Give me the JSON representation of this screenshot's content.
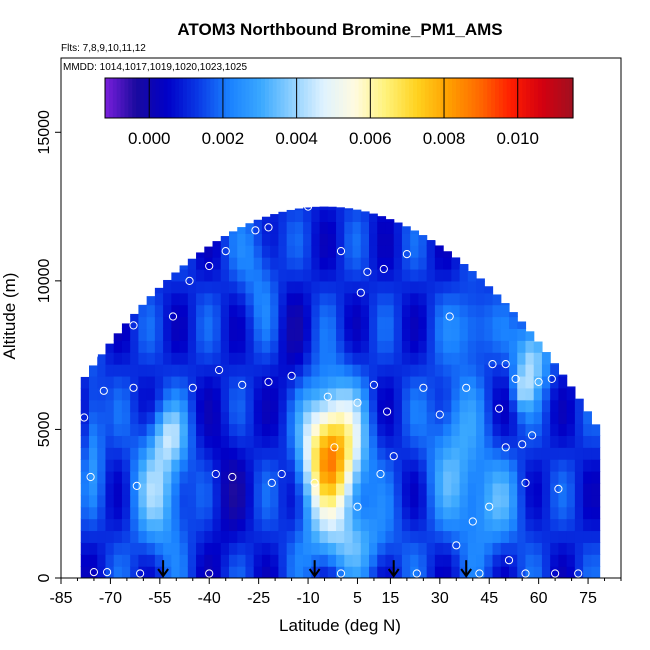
{
  "chart_data": {
    "type": "heatmap",
    "title": "ATOM3 Northbound Bromine_PM1_AMS",
    "subtitle_flights": "Flts: 7,8,9,10,11,12",
    "subtitle_dates": "MMDD: 1014,1017,1019,1020,1023,1025",
    "xlabel": "Latitude (deg N)",
    "ylabel": "Altitude (m)",
    "xlim": [
      -85,
      85
    ],
    "ylim": [
      0,
      17500
    ],
    "x_ticks": [
      -85,
      -70,
      -55,
      -40,
      -25,
      -10,
      5,
      15,
      30,
      45,
      60,
      75
    ],
    "x_tick_labels": [
      "-85",
      "-70",
      "-55",
      "-40",
      "-25",
      "-10",
      "5",
      "15",
      "30",
      "45",
      "60",
      "75"
    ],
    "y_ticks": [
      0,
      5000,
      10000,
      15000
    ],
    "y_tick_labels": [
      "0",
      "5000",
      "10000",
      "15000"
    ],
    "colorbar": {
      "range": [
        -0.0012,
        0.0115
      ],
      "ticks": [
        0.0,
        0.002,
        0.004,
        0.006,
        0.008,
        0.01
      ],
      "tick_labels": [
        "0.000",
        "0.002",
        "0.004",
        "0.006",
        "0.008",
        "0.010"
      ],
      "colors": [
        "#7a1fdc",
        "#1a0a9e",
        "#0000c8",
        "#0a3ae6",
        "#1a82ff",
        "#3aa8ff",
        "#8fd0ff",
        "#dff2ff",
        "#fffbe0",
        "#fff27a",
        "#ffd21f",
        "#ffa000",
        "#ff6a00",
        "#ff1e00",
        "#d40010",
        "#a01020"
      ]
    },
    "arrows_latitude": [
      -54,
      -8,
      16,
      38
    ],
    "sample_points": [
      {
        "lat": -78,
        "alt": 5400
      },
      {
        "lat": -76,
        "alt": 3400
      },
      {
        "lat": -75,
        "alt": 7500
      },
      {
        "lat": -74,
        "alt": 9500
      },
      {
        "lat": -72,
        "alt": 6300
      },
      {
        "lat": -75,
        "alt": 200
      },
      {
        "lat": -71,
        "alt": 200
      },
      {
        "lat": -63,
        "alt": 10500
      },
      {
        "lat": -63,
        "alt": 8500
      },
      {
        "lat": -63,
        "alt": 6400
      },
      {
        "lat": -62,
        "alt": 3100
      },
      {
        "lat": -61,
        "alt": 150
      },
      {
        "lat": -51,
        "alt": 8800
      },
      {
        "lat": -46,
        "alt": 10000
      },
      {
        "lat": -45,
        "alt": 6400
      },
      {
        "lat": -40,
        "alt": 10500
      },
      {
        "lat": -38,
        "alt": 3500
      },
      {
        "lat": -37,
        "alt": 7000
      },
      {
        "lat": -35,
        "alt": 11000
      },
      {
        "lat": -33,
        "alt": 3400
      },
      {
        "lat": -30,
        "alt": 6500
      },
      {
        "lat": -26,
        "alt": 11700
      },
      {
        "lat": -22,
        "alt": 11800
      },
      {
        "lat": -22,
        "alt": 6600
      },
      {
        "lat": -21,
        "alt": 3200
      },
      {
        "lat": -18,
        "alt": 3500
      },
      {
        "lat": -15,
        "alt": 6800
      },
      {
        "lat": -10,
        "alt": 12500
      },
      {
        "lat": -8,
        "alt": 3200
      },
      {
        "lat": -4,
        "alt": 6100
      },
      {
        "lat": -2,
        "alt": 4400
      },
      {
        "lat": 0,
        "alt": 11000
      },
      {
        "lat": 5,
        "alt": 2400
      },
      {
        "lat": 5,
        "alt": 5900
      },
      {
        "lat": 6,
        "alt": 9600
      },
      {
        "lat": 8,
        "alt": 10300
      },
      {
        "lat": 10,
        "alt": 6500
      },
      {
        "lat": 12,
        "alt": 3500
      },
      {
        "lat": 13,
        "alt": 10400
      },
      {
        "lat": 14,
        "alt": 5600
      },
      {
        "lat": 16,
        "alt": 4100
      },
      {
        "lat": 20,
        "alt": 10900
      },
      {
        "lat": 25,
        "alt": 6400
      },
      {
        "lat": 29,
        "alt": 11500
      },
      {
        "lat": 30,
        "alt": 5500
      },
      {
        "lat": 33,
        "alt": 8800
      },
      {
        "lat": 35,
        "alt": 1100
      },
      {
        "lat": 38,
        "alt": 6400
      },
      {
        "lat": 40,
        "alt": 1900
      },
      {
        "lat": 45,
        "alt": 2400
      },
      {
        "lat": 46,
        "alt": 7200
      },
      {
        "lat": 48,
        "alt": 5700
      },
      {
        "lat": 50,
        "alt": 7200
      },
      {
        "lat": 50,
        "alt": 4400
      },
      {
        "lat": 51,
        "alt": 600
      },
      {
        "lat": 53,
        "alt": 6700
      },
      {
        "lat": 55,
        "alt": 4500
      },
      {
        "lat": 56,
        "alt": 3200
      },
      {
        "lat": 58,
        "alt": 4800
      },
      {
        "lat": 60,
        "alt": 6600
      },
      {
        "lat": 64,
        "alt": 6700
      },
      {
        "lat": 66,
        "alt": 3000
      },
      {
        "lat": 23,
        "alt": 150
      },
      {
        "lat": 42,
        "alt": 150
      },
      {
        "lat": 56,
        "alt": 150
      },
      {
        "lat": 65,
        "alt": 150
      },
      {
        "lat": 72,
        "alt": 150
      },
      {
        "lat": 0,
        "alt": 150
      },
      {
        "lat": -40,
        "alt": 150
      }
    ]
  },
  "colors": {
    "background": "#ffffff",
    "axis": "#000000",
    "marker": "#ffffff"
  }
}
